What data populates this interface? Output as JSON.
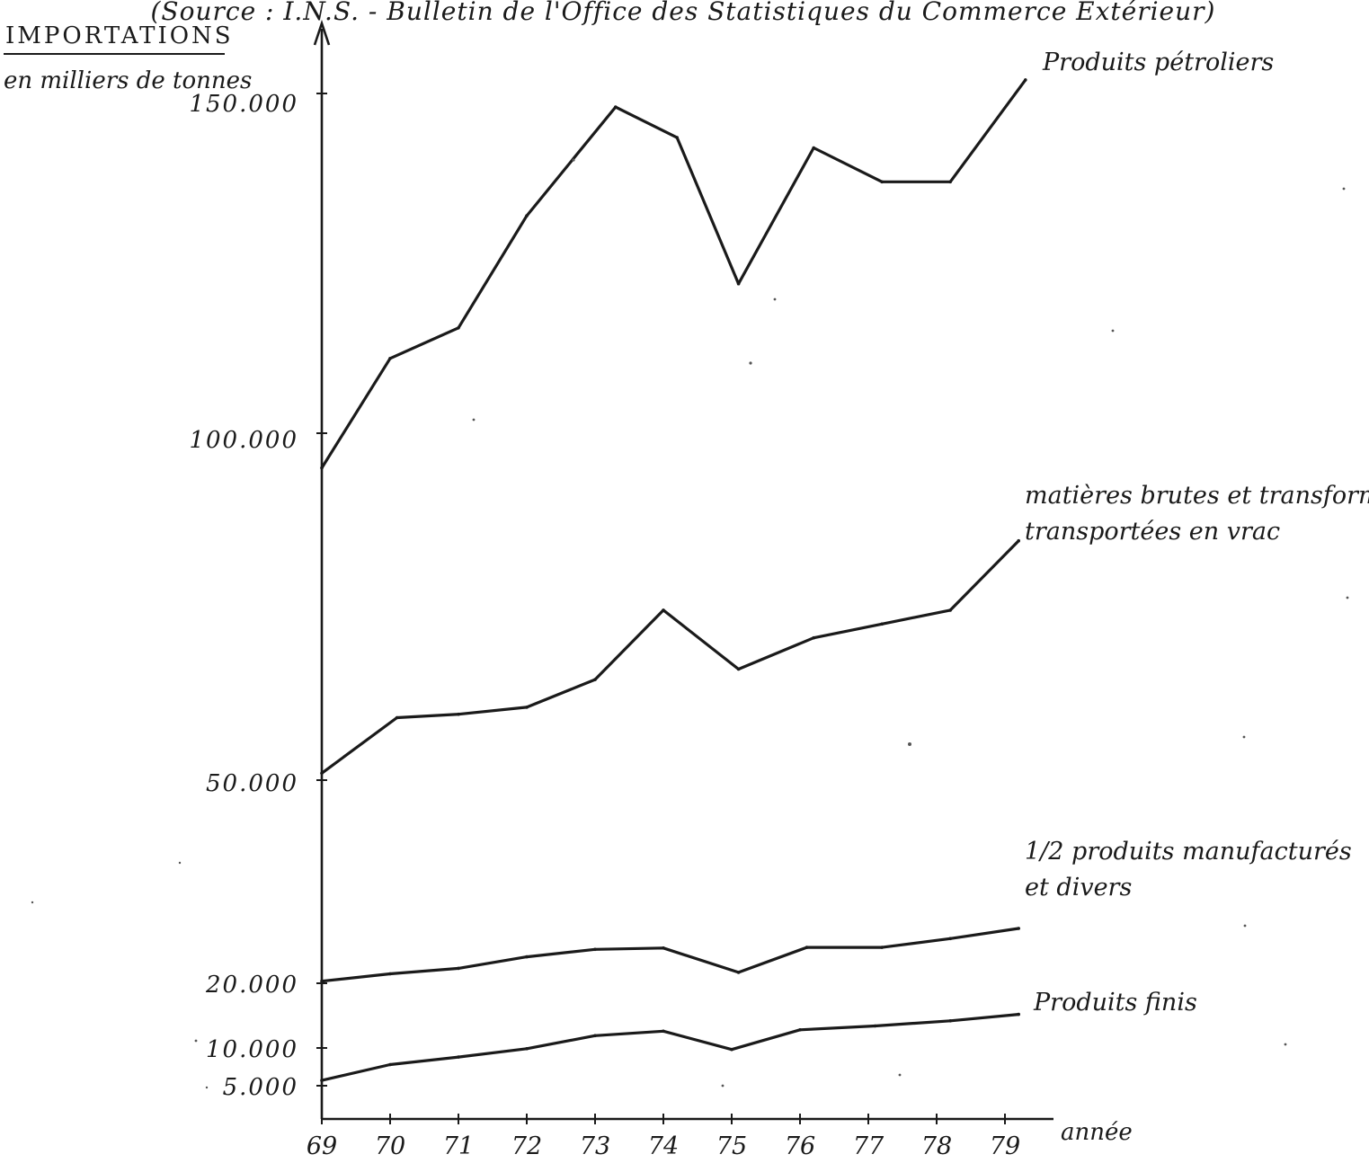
{
  "header": {
    "source_note": "(Source : I.N.S. - Bulletin de l'Office des Statistiques du Commerce Extérieur)"
  },
  "chart_data": {
    "type": "line",
    "title": "IMPORTATIONS",
    "ylabel": "en milliers de tonnes",
    "xlabel": "année",
    "x": [
      "69",
      "70",
      "71",
      "72",
      "73",
      "74",
      "75",
      "76",
      "77",
      "78",
      "79"
    ],
    "xlim": [
      69,
      79
    ],
    "ylim": [
      5000,
      150000
    ],
    "ytick_labels": [
      "5.000",
      "10.000",
      "20.000",
      "50.000",
      "100.000",
      "150.000"
    ],
    "grid": false,
    "legend": "inline labels at right end of each line",
    "series": [
      {
        "name": "Produits pétroliers",
        "points": [
          [
            69,
            95000
          ],
          [
            70,
            111000
          ],
          [
            71,
            115500
          ],
          [
            72,
            132000
          ],
          [
            73.3,
            148000
          ],
          [
            74.2,
            143500
          ],
          [
            75.1,
            122000
          ],
          [
            76.2,
            142000
          ],
          [
            77.2,
            137000
          ],
          [
            78.2,
            137000
          ],
          [
            79.3,
            152000
          ]
        ]
      },
      {
        "name": "matières brutes et transformées transportées en vrac",
        "points": [
          [
            69,
            51000
          ],
          [
            70.1,
            59000
          ],
          [
            71,
            59500
          ],
          [
            72,
            60500
          ],
          [
            73,
            64500
          ],
          [
            74,
            74500
          ],
          [
            75.1,
            66000
          ],
          [
            76.2,
            70500
          ],
          [
            77.2,
            72500
          ],
          [
            78.2,
            74500
          ],
          [
            79.2,
            84500
          ]
        ]
      },
      {
        "name": "1/2 produits manufacturés et divers",
        "points": [
          [
            69,
            20300
          ],
          [
            70,
            21400
          ],
          [
            71,
            22200
          ],
          [
            72,
            23900
          ],
          [
            73,
            25000
          ],
          [
            74,
            25200
          ],
          [
            75.1,
            21600
          ],
          [
            76.1,
            25300
          ],
          [
            77.2,
            25300
          ],
          [
            78.2,
            26600
          ],
          [
            79.2,
            28100
          ]
        ]
      },
      {
        "name": "Produits finis",
        "points": [
          [
            69,
            5700
          ],
          [
            70,
            7800
          ],
          [
            71,
            8800
          ],
          [
            72,
            9900
          ],
          [
            73,
            11900
          ],
          [
            74,
            12600
          ],
          [
            75,
            9800
          ],
          [
            76,
            12800
          ],
          [
            77.1,
            13400
          ],
          [
            78.2,
            14200
          ],
          [
            79.2,
            15200
          ]
        ]
      }
    ],
    "series_label_lines": [
      [
        "Produits pétroliers"
      ],
      [
        "matières brutes et transformées",
        "transportées en vrac"
      ],
      [
        "1/2 produits manufacturés",
        "et divers"
      ],
      [
        "Produits finis"
      ]
    ]
  }
}
